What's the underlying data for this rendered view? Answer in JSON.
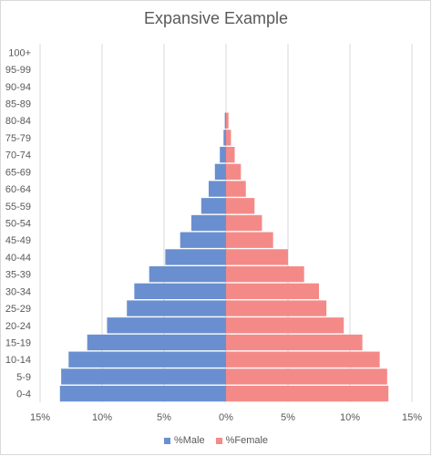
{
  "chart_data": {
    "type": "bar",
    "orientation": "horizontal",
    "title": "Expansive Example",
    "categories": [
      "0-4",
      "5-9",
      "10-14",
      "15-19",
      "20-24",
      "25-29",
      "30-34",
      "35-39",
      "40-44",
      "45-49",
      "50-54",
      "55-59",
      "60-64",
      "65-69",
      "70-74",
      "75-79",
      "80-84",
      "85-89",
      "90-94",
      "95-99",
      "100+"
    ],
    "series": [
      {
        "name": "%Male",
        "color": "#6a8fd0",
        "values": [
          13.4,
          13.3,
          12.7,
          11.2,
          9.6,
          8.0,
          7.4,
          6.2,
          4.9,
          3.7,
          2.8,
          2.0,
          1.4,
          0.9,
          0.5,
          0.2,
          0.1,
          0,
          0,
          0,
          0
        ]
      },
      {
        "name": "%Female",
        "color": "#f48a88",
        "values": [
          13.1,
          13.0,
          12.4,
          11.0,
          9.5,
          8.1,
          7.5,
          6.3,
          5.0,
          3.8,
          2.9,
          2.3,
          1.6,
          1.2,
          0.7,
          0.4,
          0.2,
          0,
          0,
          0,
          0
        ]
      }
    ],
    "xlim": [
      -15,
      15
    ],
    "xticks": [
      -15,
      -10,
      -5,
      0,
      5,
      10,
      15
    ],
    "xtick_labels": [
      "15%",
      "10%",
      "5%",
      "0%",
      "5%",
      "10%",
      "15%"
    ],
    "grid": "vertical",
    "legend": "bottom"
  }
}
